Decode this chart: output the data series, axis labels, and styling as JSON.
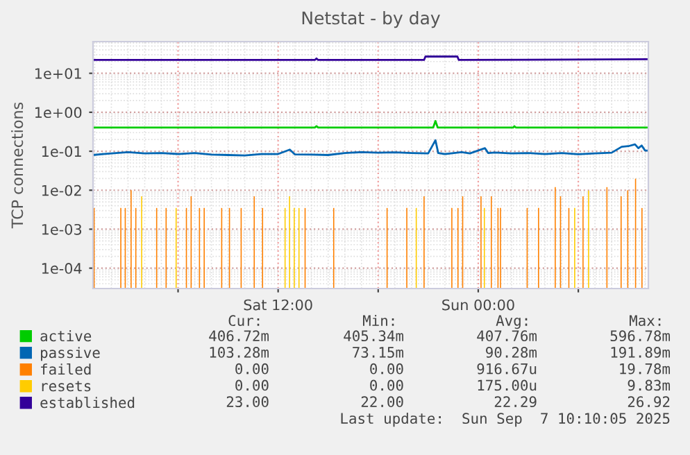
{
  "chart_data": {
    "type": "line",
    "title": "Netstat - by day",
    "ylabel": "TCP connections",
    "log": "y",
    "grid": true,
    "legend": "bottom",
    "xlim": [
      "2025-09-06T00:54",
      "2025-09-07T10:12"
    ],
    "xticks": [
      {
        "value": "2025-09-06T06:00",
        "label": null
      },
      {
        "value": "2025-09-06T12:00",
        "label": "Sat 12:00"
      },
      {
        "value": "2025-09-06T18:00",
        "label": null
      },
      {
        "value": "2025-09-07T00:00",
        "label": "Sun 00:00"
      },
      {
        "value": "2025-09-07T06:00",
        "label": null
      }
    ],
    "ylim": [
      3e-05,
      65
    ],
    "yticks": [
      {
        "value": 0.0001,
        "label": "1e-04"
      },
      {
        "value": 0.001,
        "label": "1e-03"
      },
      {
        "value": 0.01,
        "label": "1e-02"
      },
      {
        "value": 0.1,
        "label": "1e-01"
      },
      {
        "value": 1,
        "label": "1e+00"
      },
      {
        "value": 10,
        "label": "1e+01"
      }
    ],
    "series": [
      {
        "name": "active",
        "color": "#00cc00",
        "x": [
          "2025-09-06T00:54",
          "2025-09-06T14:12",
          "2025-09-06T14:18",
          "2025-09-06T14:24",
          "2025-09-06T21:18",
          "2025-09-06T21:26",
          "2025-09-06T21:34",
          "2025-09-07T02:06",
          "2025-09-07T02:10",
          "2025-09-07T02:15",
          "2025-09-07T10:12"
        ],
        "values": [
          0.4067,
          0.4067,
          0.44,
          0.4067,
          0.4067,
          0.5968,
          0.4067,
          0.4067,
          0.44,
          0.4067,
          0.4067
        ]
      },
      {
        "name": "passive",
        "color": "#0066b3",
        "x": [
          "2025-09-06T00:54",
          "2025-09-06T01:30",
          "2025-09-06T02:18",
          "2025-09-06T03:00",
          "2025-09-06T04:00",
          "2025-09-06T05:00",
          "2025-09-06T06:00",
          "2025-09-06T07:00",
          "2025-09-06T08:00",
          "2025-09-06T09:00",
          "2025-09-06T10:00",
          "2025-09-06T11:00",
          "2025-09-06T12:00",
          "2025-09-06T12:42",
          "2025-09-06T13:00",
          "2025-09-06T14:00",
          "2025-09-06T15:00",
          "2025-09-06T16:00",
          "2025-09-06T17:00",
          "2025-09-06T18:00",
          "2025-09-06T19:00",
          "2025-09-06T20:00",
          "2025-09-06T21:00",
          "2025-09-06T21:26",
          "2025-09-06T21:36",
          "2025-09-06T22:00",
          "2025-09-06T23:00",
          "2025-09-06T23:30",
          "2025-09-07T00:24",
          "2025-09-07T00:36",
          "2025-09-07T01:00",
          "2025-09-07T02:00",
          "2025-09-07T03:00",
          "2025-09-07T04:00",
          "2025-09-07T05:00",
          "2025-09-07T06:00",
          "2025-09-07T07:00",
          "2025-09-07T08:00",
          "2025-09-07T08:36",
          "2025-09-07T09:00",
          "2025-09-07T09:24",
          "2025-09-07T09:36",
          "2025-09-07T09:48",
          "2025-09-07T10:00",
          "2025-09-07T10:12"
        ],
        "values": [
          0.08,
          0.085,
          0.09,
          0.095,
          0.088,
          0.09,
          0.085,
          0.09,
          0.082,
          0.08,
          0.078,
          0.085,
          0.085,
          0.11,
          0.083,
          0.082,
          0.08,
          0.09,
          0.095,
          0.092,
          0.094,
          0.09,
          0.088,
          0.1919,
          0.09,
          0.085,
          0.095,
          0.088,
          0.12,
          0.09,
          0.093,
          0.088,
          0.09,
          0.085,
          0.09,
          0.084,
          0.088,
          0.092,
          0.13,
          0.135,
          0.15,
          0.12,
          0.14,
          0.105,
          0.1033
        ]
      },
      {
        "name": "failed",
        "color": "#ff8000",
        "type": "bar",
        "x": [
          "2025-09-06T00:58",
          "2025-09-06T02:34",
          "2025-09-06T02:50",
          "2025-09-06T03:11",
          "2025-09-06T03:28",
          "2025-09-06T04:43",
          "2025-09-06T05:17",
          "2025-09-06T06:30",
          "2025-09-06T06:47",
          "2025-09-06T07:17",
          "2025-09-06T07:34",
          "2025-09-06T08:37",
          "2025-09-06T09:05",
          "2025-09-06T09:47",
          "2025-09-06T10:34",
          "2025-09-06T11:04",
          "2025-09-06T13:37",
          "2025-09-06T15:20",
          "2025-09-06T18:32",
          "2025-09-06T19:43",
          "2025-09-06T20:45",
          "2025-09-06T22:25",
          "2025-09-06T22:47",
          "2025-09-06T23:04",
          "2025-09-07T00:10",
          "2025-09-07T00:47",
          "2025-09-07T01:11",
          "2025-09-07T01:20",
          "2025-09-07T02:56",
          "2025-09-07T03:37",
          "2025-09-07T04:37",
          "2025-09-07T04:56",
          "2025-09-07T05:26",
          "2025-09-07T06:17",
          "2025-09-07T07:43",
          "2025-09-07T08:34",
          "2025-09-07T08:58",
          "2025-09-07T09:26",
          "2025-09-07T09:49"
        ],
        "values": [
          0.0035,
          0.0035,
          0.0035,
          0.01,
          0.0035,
          0.0035,
          0.0035,
          0.0035,
          0.007,
          0.0035,
          0.0035,
          0.0035,
          0.0035,
          0.0035,
          0.007,
          0.0035,
          0.0035,
          0.0035,
          0.0035,
          0.0035,
          0.007,
          0.0035,
          0.0035,
          0.007,
          0.007,
          0.007,
          0.0035,
          0.0035,
          0.0035,
          0.0035,
          0.012,
          0.007,
          0.0035,
          0.007,
          0.012,
          0.007,
          0.01,
          0.0198,
          0.0035
        ]
      },
      {
        "name": "resets",
        "color": "#ffcc00",
        "type": "bar",
        "x": [
          "2025-09-06T03:49",
          "2025-09-06T05:53",
          "2025-09-06T12:25",
          "2025-09-06T12:41",
          "2025-09-06T12:58",
          "2025-09-06T13:15",
          "2025-09-06T20:17",
          "2025-09-07T00:22",
          "2025-09-07T05:47",
          "2025-09-07T06:37"
        ],
        "values": [
          0.007,
          0.0035,
          0.0035,
          0.007,
          0.0035,
          0.0035,
          0.0035,
          0.0035,
          0.0035,
          0.00983
        ]
      },
      {
        "name": "established",
        "color": "#330099",
        "x": [
          "2025-09-06T00:54",
          "2025-09-06T14:12",
          "2025-09-06T14:18",
          "2025-09-06T14:24",
          "2025-09-06T20:45",
          "2025-09-06T20:50",
          "2025-09-06T22:45",
          "2025-09-06T22:50",
          "2025-09-07T10:12"
        ],
        "values": [
          22,
          22,
          24,
          22,
          22,
          26.92,
          26.92,
          22,
          23
        ]
      }
    ],
    "annotations": [
      "Cur:",
      "Min:",
      "Avg:",
      "Max:",
      "406.72m",
      "405.34m",
      "407.76m",
      "596.78m",
      "103.28m",
      "73.15m",
      "90.28m",
      "191.89m",
      "0.00",
      "0.00",
      "916.67u",
      "19.78m",
      "0.00",
      "0.00",
      "175.00u",
      "9.83m",
      "23.00",
      "22.00",
      "22.29",
      "26.92",
      "Last update:  Sun Sep  7 10:10:05 2025"
    ]
  }
}
